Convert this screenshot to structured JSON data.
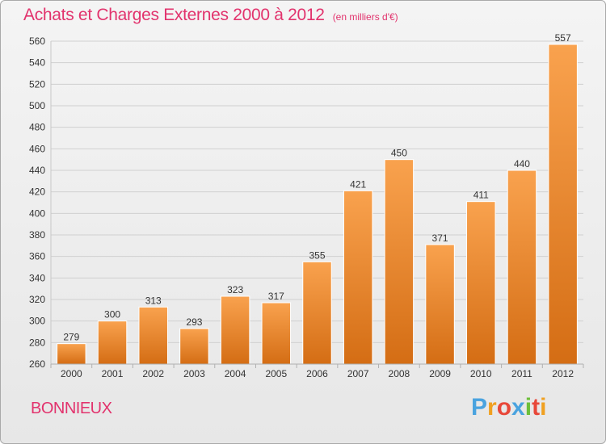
{
  "chart_data": {
    "type": "bar",
    "title": "Achats et Charges Externes 2000 à 2012",
    "unit_note": "(en milliers d'€)",
    "categories": [
      "2000",
      "2001",
      "2002",
      "2003",
      "2004",
      "2005",
      "2006",
      "2007",
      "2008",
      "2009",
      "2010",
      "2011",
      "2012"
    ],
    "values": [
      279,
      300,
      313,
      293,
      323,
      317,
      355,
      421,
      450,
      371,
      411,
      440,
      557
    ],
    "xlabel": "",
    "ylabel": "",
    "ylim": [
      260,
      560
    ],
    "yticks": [
      260,
      280,
      300,
      320,
      340,
      360,
      380,
      400,
      420,
      440,
      460,
      480,
      500,
      520,
      540,
      560
    ],
    "grid": true,
    "legend": "none",
    "bar_color_top": "#f9a24e",
    "bar_color_bottom": "#d46d14"
  },
  "commune": "BONNIEUX",
  "brand": {
    "letters": [
      "P",
      "r",
      "o",
      "x",
      "i",
      "t",
      "i"
    ],
    "colors": [
      "#4aa3df",
      "#f0a020",
      "#e8483a",
      "#4aa3df",
      "#6cbf3a",
      "#e8483a",
      "#f0a020"
    ]
  }
}
